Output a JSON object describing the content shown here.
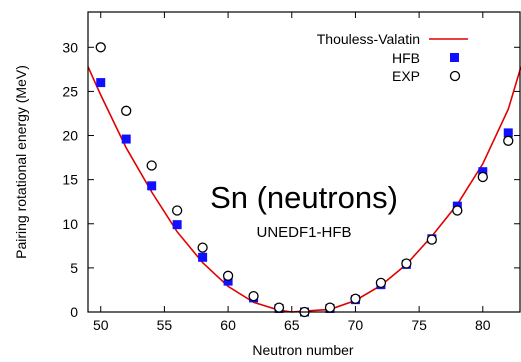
{
  "chart_data": {
    "type": "scatter",
    "title": "Sn (neutrons)",
    "subtitle": "UNEDF1-HFB",
    "xlabel": "Neutron number",
    "ylabel": "Pairing rotational energy (MeV)",
    "xlim": [
      49,
      83
    ],
    "ylim": [
      0,
      34
    ],
    "x_ticks": [
      50,
      55,
      60,
      65,
      70,
      75,
      80
    ],
    "y_ticks": [
      0,
      5,
      10,
      15,
      20,
      25,
      30
    ],
    "legend_position": "top-right",
    "series": [
      {
        "name": "Thouless-Valatin",
        "kind": "line",
        "color": "#e00000",
        "x": [
          49,
          50,
          52,
          54,
          56,
          58,
          60,
          62,
          64,
          65,
          66,
          68,
          70,
          72,
          74,
          76,
          78,
          80,
          82,
          83
        ],
        "values": [
          27.8,
          24.6,
          18.6,
          13.6,
          9.1,
          5.6,
          2.9,
          1.1,
          0.2,
          0.0,
          0.1,
          0.3,
          1.3,
          3.0,
          5.4,
          8.6,
          12.2,
          16.8,
          23.0,
          27.8
        ]
      },
      {
        "name": "HFB",
        "kind": "marker",
        "marker": "square",
        "color": "#1010ff",
        "x": [
          50,
          52,
          54,
          56,
          58,
          60,
          62,
          64,
          66,
          68,
          70,
          72,
          74,
          76,
          78,
          80,
          82
        ],
        "values": [
          26.0,
          19.6,
          14.3,
          9.9,
          6.2,
          3.5,
          1.6,
          0.4,
          0.0,
          0.4,
          1.4,
          3.1,
          5.4,
          8.3,
          12.0,
          15.9,
          20.3
        ]
      },
      {
        "name": "EXP",
        "kind": "marker",
        "marker": "circle",
        "color": "#000000",
        "x": [
          50,
          52,
          54,
          56,
          58,
          60,
          62,
          64,
          66,
          68,
          70,
          72,
          74,
          76,
          78,
          80,
          82
        ],
        "values": [
          30.0,
          22.8,
          16.6,
          11.5,
          7.3,
          4.1,
          1.8,
          0.5,
          0.0,
          0.5,
          1.5,
          3.3,
          5.5,
          8.2,
          11.5,
          15.3,
          19.4
        ]
      }
    ]
  }
}
